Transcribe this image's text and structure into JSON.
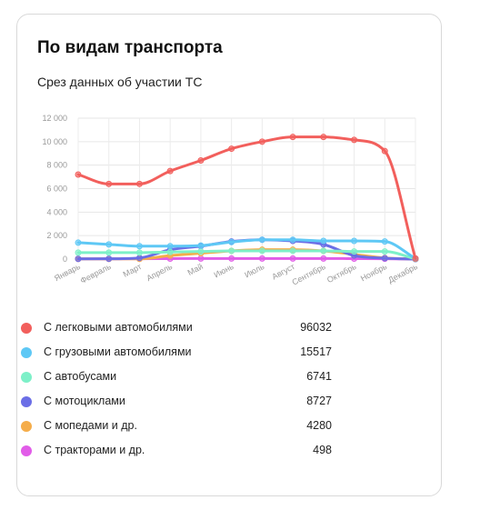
{
  "card": {
    "title": "По видам транспорта",
    "subtitle": "Срез данных об участии ТС"
  },
  "chart_data": {
    "type": "line",
    "categories": [
      "Январь",
      "Февраль",
      "Март",
      "Апрель",
      "Май",
      "Июнь",
      "Июль",
      "Август",
      "Сентябрь",
      "Октябрь",
      "Ноябрь",
      "Декабрь"
    ],
    "yticks": [
      "12 000",
      "10 000",
      "8 000",
      "6 000",
      "4 000",
      "2 000",
      "0"
    ],
    "ylim": [
      0,
      12000
    ],
    "grid": true,
    "legend_position": "bottom",
    "series": [
      {
        "name": "С легковыми автомобилями",
        "total": "96032",
        "color": "#f25f5c",
        "values": [
          7200,
          6400,
          6400,
          7500,
          8400,
          9400,
          10000,
          10400,
          10400,
          10150,
          9200,
          50
        ]
      },
      {
        "name": "С грузовыми автомобилями",
        "total": "15517",
        "color": "#5ec8f5",
        "values": [
          1400,
          1250,
          1100,
          1100,
          1150,
          1450,
          1650,
          1650,
          1550,
          1550,
          1500,
          50
        ]
      },
      {
        "name": "С автобусами",
        "total": "6741",
        "color": "#7df0c8",
        "values": [
          550,
          550,
          550,
          600,
          650,
          700,
          700,
          700,
          700,
          650,
          650,
          20
        ]
      },
      {
        "name": "С мотоциклами",
        "total": "8727",
        "color": "#6b6ee6",
        "values": [
          20,
          30,
          100,
          800,
          1100,
          1500,
          1650,
          1550,
          1250,
          300,
          80,
          0
        ]
      },
      {
        "name": "С мопедами и др.",
        "total": "4280",
        "color": "#f5ad4a",
        "values": [
          20,
          20,
          20,
          300,
          500,
          700,
          800,
          800,
          700,
          400,
          100,
          0
        ]
      },
      {
        "name": "С тракторами и др.",
        "total": "498",
        "color": "#e15ce8",
        "values": [
          20,
          20,
          30,
          40,
          50,
          50,
          50,
          50,
          50,
          40,
          30,
          0
        ]
      }
    ]
  }
}
